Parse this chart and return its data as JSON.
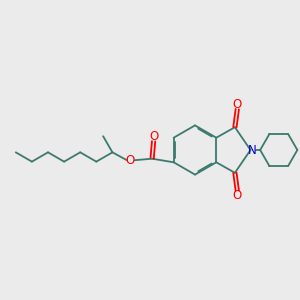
{
  "background_color": "#ebebeb",
  "bond_color": "#3d7a6e",
  "oxygen_color": "#ff0000",
  "nitrogen_color": "#0000cc",
  "line_width": 1.3,
  "dbo": 0.055,
  "figsize": [
    3.0,
    3.0
  ],
  "dpi": 100,
  "xlim": [
    0,
    10
  ],
  "ylim": [
    0,
    10
  ]
}
